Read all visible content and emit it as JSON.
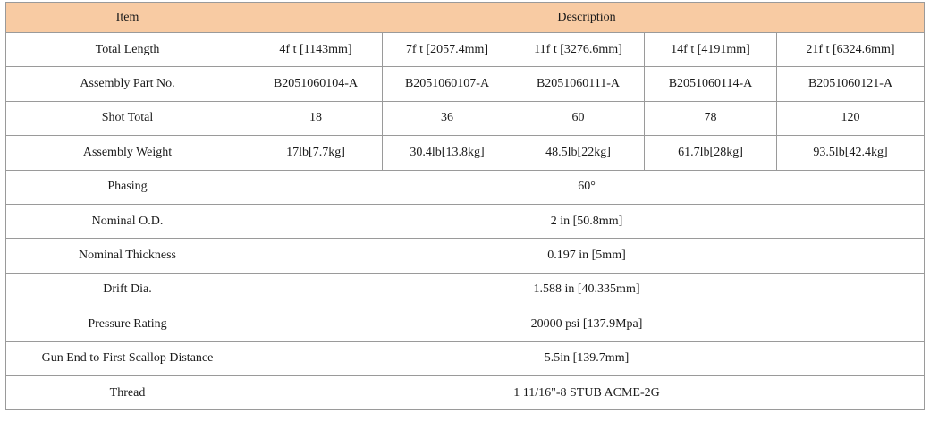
{
  "table": {
    "header": [
      "Item",
      "Description"
    ],
    "rows": [
      {
        "label": "Total Length",
        "values": [
          "4f t [1143mm]",
          "7f t [2057.4mm]",
          "11f t [3276.6mm]",
          "14f t [4191mm]",
          "21f t [6324.6mm]"
        ]
      },
      {
        "label": "Assembly Part No.",
        "values": [
          "B2051060104-A",
          "B2051060107-A",
          "B2051060111-A",
          "B2051060114-A",
          "B2051060121-A"
        ]
      },
      {
        "label": "Shot Total",
        "values": [
          "18",
          "36",
          "60",
          "78",
          "120"
        ]
      },
      {
        "label": "Assembly Weight",
        "values": [
          "17lb[7.7kg]",
          "30.4lb[13.8kg]",
          "48.5lb[22kg]",
          "61.7lb[28kg]",
          "93.5lb[42.4kg]"
        ]
      },
      {
        "label": "Phasing",
        "values": [
          "60°"
        ]
      },
      {
        "label": "Nominal O.D.",
        "values": [
          "2 in [50.8mm]"
        ]
      },
      {
        "label": "Nominal Thickness",
        "values": [
          "0.197 in [5mm]"
        ]
      },
      {
        "label": "Drift Dia.",
        "values": [
          "1.588 in [40.335mm]"
        ]
      },
      {
        "label": "Pressure Rating",
        "values": [
          "20000 psi [137.9Mpa]"
        ]
      },
      {
        "label": "Gun End to First Scallop Distance",
        "values": [
          "5.5in [139.7mm]"
        ]
      },
      {
        "label": "Thread",
        "values": [
          "1 11/16\"-8 STUB ACME-2G"
        ]
      }
    ]
  }
}
